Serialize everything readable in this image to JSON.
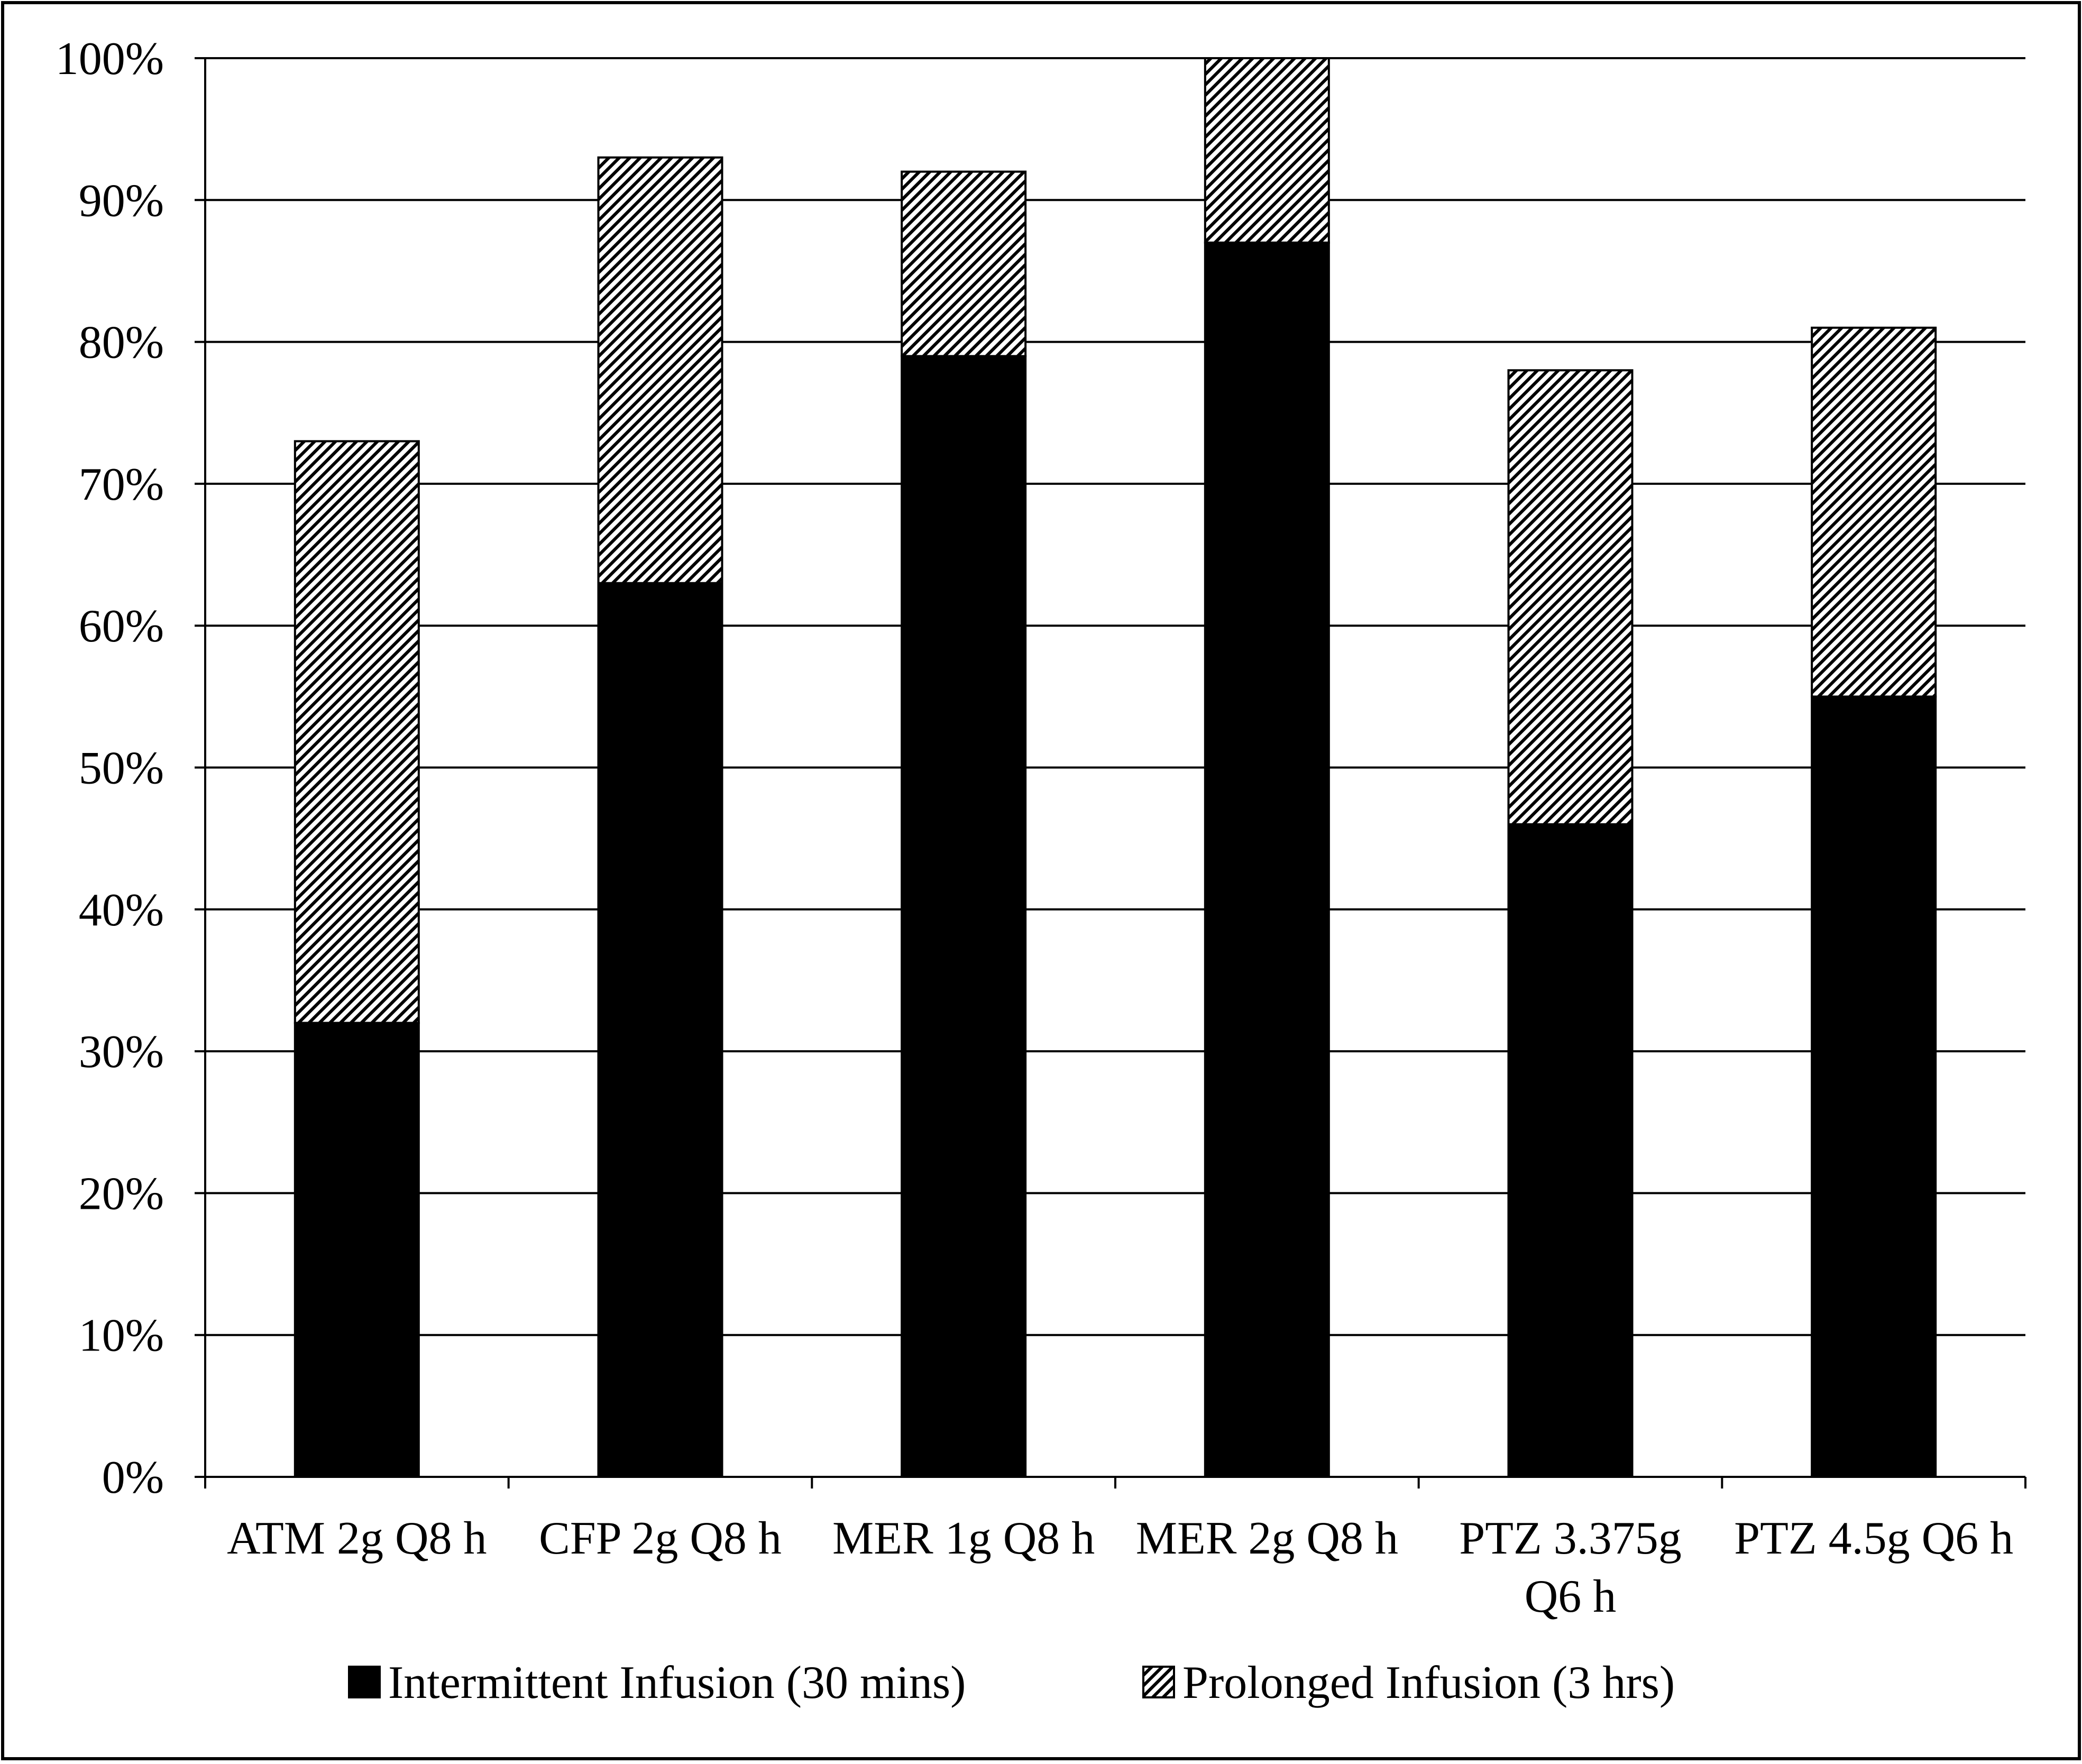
{
  "chart_data": {
    "type": "bar",
    "stacked": true,
    "title": "",
    "xlabel": "",
    "ylabel": "",
    "ylim": [
      0,
      100
    ],
    "y_ticks": [
      "0%",
      "10%",
      "20%",
      "30%",
      "40%",
      "50%",
      "60%",
      "70%",
      "80%",
      "90%",
      "100%"
    ],
    "grid": true,
    "legend_position": "bottom",
    "categories": [
      [
        "ATM 2g Q8 h"
      ],
      [
        "CFP 2g Q8 h"
      ],
      [
        "MER 1g Q8 h"
      ],
      [
        "MER 2g Q8 h"
      ],
      [
        "PTZ 3.375g",
        "Q6 h"
      ],
      [
        "PTZ 4.5g Q6 h"
      ]
    ],
    "series": [
      {
        "name": "Intermittent Infusion (30 mins)",
        "values": [
          32,
          63,
          79,
          87,
          46,
          55
        ],
        "color": "#000000"
      },
      {
        "name": "Prolonged Infusion (3 hrs)",
        "values": [
          41,
          30,
          13,
          13,
          32,
          26
        ],
        "color": "hatched"
      }
    ],
    "totals": [
      73,
      93,
      92,
      100,
      78,
      81
    ]
  }
}
